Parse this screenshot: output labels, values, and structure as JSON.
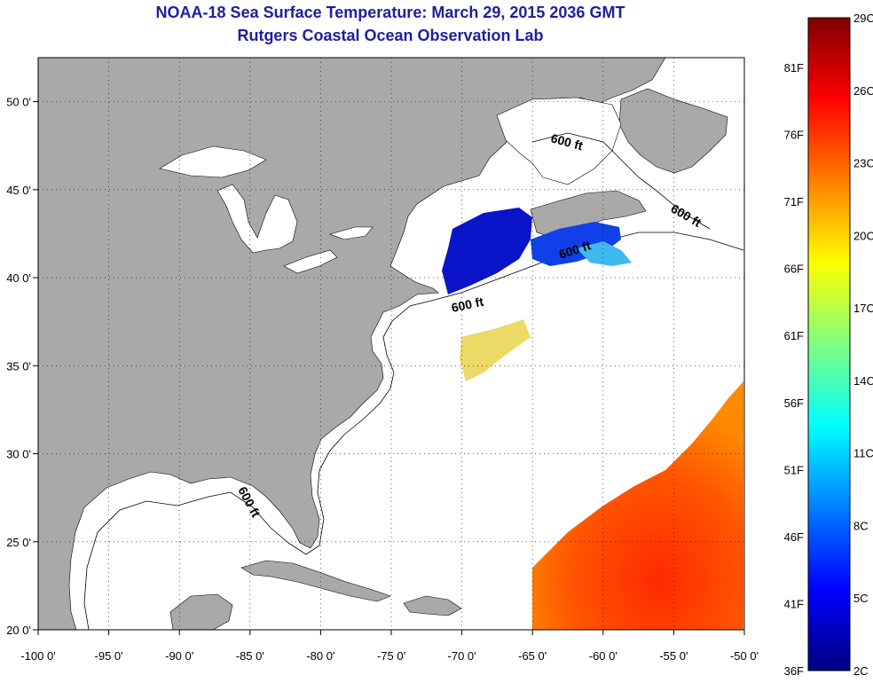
{
  "title": "NOAA-18 Sea Surface Temperature:  March 29, 2015 2036 GMT",
  "subtitle": "Rutgers Coastal Ocean Observation Lab",
  "map": {
    "lon_ticks": [
      "-100 0'",
      "-95 0'",
      "-90 0'",
      "-85 0'",
      "-80 0'",
      "-75 0'",
      "-70 0'",
      "-65 0'",
      "-60 0'",
      "-55 0'",
      "-50 0'"
    ],
    "lat_ticks": [
      "20 0'",
      "25 0'",
      "30 0'",
      "35 0'",
      "40 0'",
      "45 0'",
      "50 0'"
    ],
    "lon_range": [
      -100,
      -50
    ],
    "lat_range": [
      20,
      52.5
    ],
    "land_color": "#a9a9a9",
    "ocean_color": "#ffffff",
    "isobath_labels": [
      "600 ft",
      "600 ft",
      "600 ft",
      "600 ft",
      "600 ft"
    ]
  },
  "colorbar": {
    "celsius_labels": [
      "29C",
      "26C",
      "23C",
      "20C",
      "17C",
      "14C",
      "11C",
      "8C",
      "5C",
      "2C"
    ],
    "fahrenheit_labels": [
      "81F",
      "76F",
      "71F",
      "66F",
      "61F",
      "56F",
      "51F",
      "46F",
      "41F",
      "36F"
    ],
    "colors": [
      "#00007f",
      "#0000ff",
      "#007fff",
      "#00ffff",
      "#7fff7f",
      "#ffff00",
      "#ff7f00",
      "#ff0000",
      "#7f0000"
    ]
  }
}
